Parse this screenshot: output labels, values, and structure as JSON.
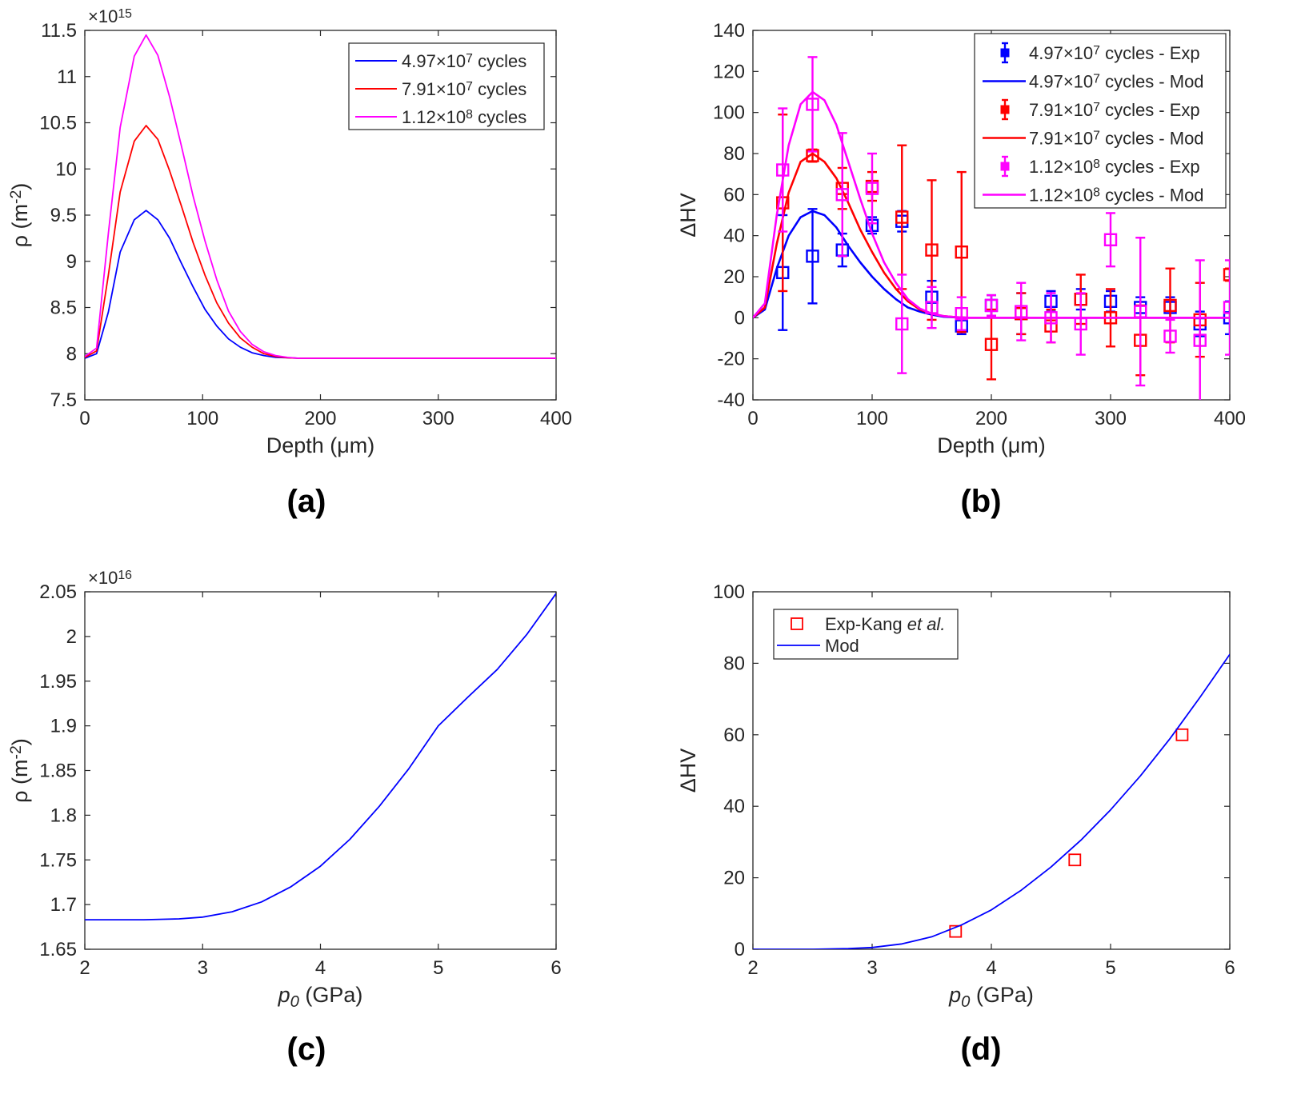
{
  "chart_data": [
    {
      "id": "a",
      "type": "line",
      "panel_label": "(a)",
      "xlabel": "Depth (μm)",
      "ylabel": "ρ (m⁻²)",
      "exponent_label": "×10¹⁵",
      "xlim": [
        0,
        400
      ],
      "ylim": [
        7.5,
        11.5
      ],
      "xticks": [
        0,
        100,
        200,
        300,
        400
      ],
      "yticks": [
        7.5,
        8,
        8.5,
        9,
        9.5,
        10,
        10.5,
        11,
        11.5
      ],
      "legend_position": "top-right",
      "series": [
        {
          "name": "4.97×10⁷ cycles",
          "color": "#0000ff",
          "x": [
            0,
            10,
            20,
            30,
            42,
            52,
            62,
            72,
            82,
            92,
            102,
            112,
            122,
            132,
            142,
            152,
            162,
            172,
            182,
            200,
            250,
            300,
            350,
            400
          ],
          "y": [
            7.95,
            8.0,
            8.45,
            9.1,
            9.45,
            9.55,
            9.45,
            9.25,
            8.98,
            8.72,
            8.48,
            8.3,
            8.16,
            8.07,
            8.01,
            7.98,
            7.96,
            7.955,
            7.95,
            7.95,
            7.95,
            7.95,
            7.95,
            7.95
          ]
        },
        {
          "name": "7.91×10⁷ cycles",
          "color": "#ff0000",
          "x": [
            0,
            10,
            20,
            30,
            42,
            52,
            62,
            72,
            82,
            92,
            102,
            112,
            122,
            132,
            142,
            152,
            162,
            172,
            182,
            200,
            250,
            300,
            350,
            400
          ],
          "y": [
            7.96,
            8.03,
            8.85,
            9.75,
            10.3,
            10.47,
            10.32,
            9.98,
            9.6,
            9.2,
            8.85,
            8.55,
            8.33,
            8.17,
            8.07,
            8.0,
            7.97,
            7.955,
            7.95,
            7.95,
            7.95,
            7.95,
            7.95,
            7.95
          ]
        },
        {
          "name": "1.12×10⁸ cycles",
          "color": "#ff00ff",
          "x": [
            0,
            10,
            20,
            30,
            42,
            52,
            62,
            72,
            82,
            92,
            102,
            112,
            122,
            132,
            142,
            152,
            162,
            172,
            182,
            200,
            250,
            300,
            350,
            400
          ],
          "y": [
            7.97,
            8.06,
            9.3,
            10.45,
            11.22,
            11.45,
            11.23,
            10.78,
            10.25,
            9.7,
            9.22,
            8.8,
            8.46,
            8.24,
            8.1,
            8.02,
            7.98,
            7.96,
            7.95,
            7.95,
            7.95,
            7.95,
            7.95,
            7.95
          ]
        }
      ]
    },
    {
      "id": "b",
      "type": "line",
      "panel_label": "(b)",
      "xlabel": "Depth (μm)",
      "ylabel": "ΔHV",
      "xlim": [
        0,
        400
      ],
      "ylim": [
        -40,
        140
      ],
      "xticks": [
        0,
        100,
        200,
        300,
        400
      ],
      "yticks": [
        -40,
        -20,
        0,
        20,
        40,
        60,
        80,
        100,
        120,
        140
      ],
      "legend_position": "top-right",
      "series": [
        {
          "name": "4.97×10⁷ cycles - Exp",
          "color": "#0000ff",
          "kind": "errorbar",
          "x": [
            25,
            50,
            75,
            100,
            125,
            150,
            175,
            200,
            225,
            250,
            275,
            300,
            325,
            350,
            375,
            400
          ],
          "y": [
            22,
            30,
            33,
            45,
            47,
            10,
            -4,
            6,
            2,
            8,
            9,
            8,
            5,
            5,
            -3,
            0
          ],
          "err": [
            28,
            23,
            8,
            4,
            5,
            8,
            4,
            5,
            10,
            5,
            5,
            5,
            5,
            5,
            6,
            8
          ]
        },
        {
          "name": "4.97×10⁷ cycles - Mod",
          "color": "#0000ff",
          "kind": "line",
          "x": [
            0,
            10,
            20,
            30,
            40,
            50,
            60,
            70,
            80,
            90,
            100,
            110,
            120,
            130,
            140,
            150,
            160,
            170,
            180,
            200,
            250,
            300,
            350,
            400
          ],
          "y": [
            0,
            4,
            24,
            40,
            49,
            52,
            50,
            44,
            35,
            27,
            20,
            14,
            9,
            5,
            3,
            1.5,
            0.5,
            0.2,
            0,
            0,
            0,
            0,
            0,
            0
          ]
        },
        {
          "name": "7.91×10⁷ cycles - Exp",
          "color": "#ff0000",
          "kind": "errorbar",
          "x": [
            25,
            50,
            75,
            100,
            125,
            150,
            175,
            200,
            225,
            250,
            275,
            300,
            325,
            350,
            375,
            400
          ],
          "y": [
            56,
            79,
            63,
            64,
            49,
            33,
            32,
            -13,
            2,
            -4,
            9,
            0,
            -11,
            6,
            -1,
            21
          ],
          "err": [
            43,
            3,
            10,
            7,
            35,
            34,
            39,
            17,
            10,
            8,
            12,
            14,
            17,
            18,
            18,
            3
          ]
        },
        {
          "name": "7.91×10⁷ cycles - Mod",
          "color": "#ff0000",
          "kind": "line",
          "x": [
            0,
            10,
            20,
            30,
            40,
            50,
            60,
            70,
            80,
            90,
            100,
            110,
            120,
            130,
            140,
            150,
            160,
            170,
            180,
            200,
            250,
            300,
            350,
            400
          ],
          "y": [
            0,
            5,
            36,
            61,
            76,
            80,
            76,
            68,
            56,
            43,
            32,
            22,
            14,
            8,
            4,
            2,
            0.8,
            0.3,
            0,
            0,
            0,
            0,
            0,
            0
          ]
        },
        {
          "name": "1.12×10⁸ cycles - Exp",
          "color": "#ff00ff",
          "kind": "errorbar",
          "x": [
            25,
            50,
            75,
            100,
            125,
            150,
            175,
            200,
            225,
            250,
            275,
            300,
            325,
            350,
            375,
            400
          ],
          "y": [
            72,
            104,
            60,
            63,
            -3,
            5,
            2,
            6,
            3,
            0,
            -3,
            38,
            3,
            -9,
            -11,
            5
          ],
          "err": [
            30,
            23,
            30,
            17,
            24,
            10,
            8,
            5,
            14,
            12,
            15,
            13,
            36,
            8,
            39,
            23
          ]
        },
        {
          "name": "1.12×10⁸ cycles - Mod",
          "color": "#ff00ff",
          "kind": "line",
          "x": [
            0,
            10,
            20,
            30,
            40,
            50,
            60,
            70,
            80,
            90,
            100,
            110,
            120,
            130,
            140,
            150,
            160,
            170,
            180,
            200,
            250,
            300,
            350,
            400
          ],
          "y": [
            0,
            7,
            50,
            84,
            104,
            110,
            106,
            94,
            76,
            58,
            41,
            27,
            17,
            9,
            4.5,
            2,
            0.8,
            0.3,
            0,
            0,
            0,
            0,
            0,
            0
          ]
        }
      ]
    },
    {
      "id": "c",
      "type": "line",
      "panel_label": "(c)",
      "xlabel": "(GPa)",
      "xlabel_symbol": "p",
      "xlabel_subscript": "0",
      "ylabel": "ρ (m⁻²)",
      "exponent_label": "×10¹⁶",
      "xlim": [
        2,
        6
      ],
      "ylim": [
        1.65,
        2.05
      ],
      "xticks": [
        2,
        3,
        4,
        5,
        6
      ],
      "yticks": [
        1.65,
        1.7,
        1.75,
        1.8,
        1.85,
        1.9,
        1.95,
        2,
        2.05
      ],
      "series": [
        {
          "name": "Mod",
          "color": "#0000ff",
          "x": [
            2,
            2.5,
            2.8,
            3.0,
            3.25,
            3.5,
            3.75,
            4.0,
            4.25,
            4.5,
            4.75,
            5.0,
            5.25,
            5.5,
            5.75,
            6.0
          ],
          "y": [
            1.683,
            1.683,
            1.684,
            1.686,
            1.692,
            1.703,
            1.72,
            1.743,
            1.773,
            1.81,
            1.852,
            1.9,
            1.932,
            1.963,
            2.002,
            2.048
          ]
        }
      ]
    },
    {
      "id": "d",
      "type": "scatter",
      "panel_label": "(d)",
      "xlabel": "(GPa)",
      "xlabel_symbol": "p",
      "xlabel_subscript": "0",
      "ylabel": "ΔHV",
      "xlim": [
        2,
        6
      ],
      "ylim": [
        0,
        100
      ],
      "xticks": [
        2,
        3,
        4,
        5,
        6
      ],
      "yticks": [
        0,
        20,
        40,
        60,
        80,
        100
      ],
      "legend_position": "top-left",
      "series": [
        {
          "name": "Exp-Kang",
          "name_italic_suffix": "et al.",
          "color": "#ff0000",
          "kind": "marker",
          "x": [
            3.7,
            4.7,
            5.6
          ],
          "y": [
            5,
            25,
            60
          ]
        },
        {
          "name": "Mod",
          "color": "#0000ff",
          "kind": "line",
          "x": [
            2,
            2.5,
            2.8,
            3.0,
            3.25,
            3.5,
            3.75,
            4.0,
            4.25,
            4.5,
            4.75,
            5.0,
            5.25,
            5.5,
            5.75,
            6.0
          ],
          "y": [
            0,
            0,
            0.2,
            0.5,
            1.5,
            3.5,
            6.8,
            11,
            16.5,
            23,
            30.5,
            39,
            48.5,
            59,
            70.5,
            82.5
          ]
        }
      ]
    }
  ]
}
